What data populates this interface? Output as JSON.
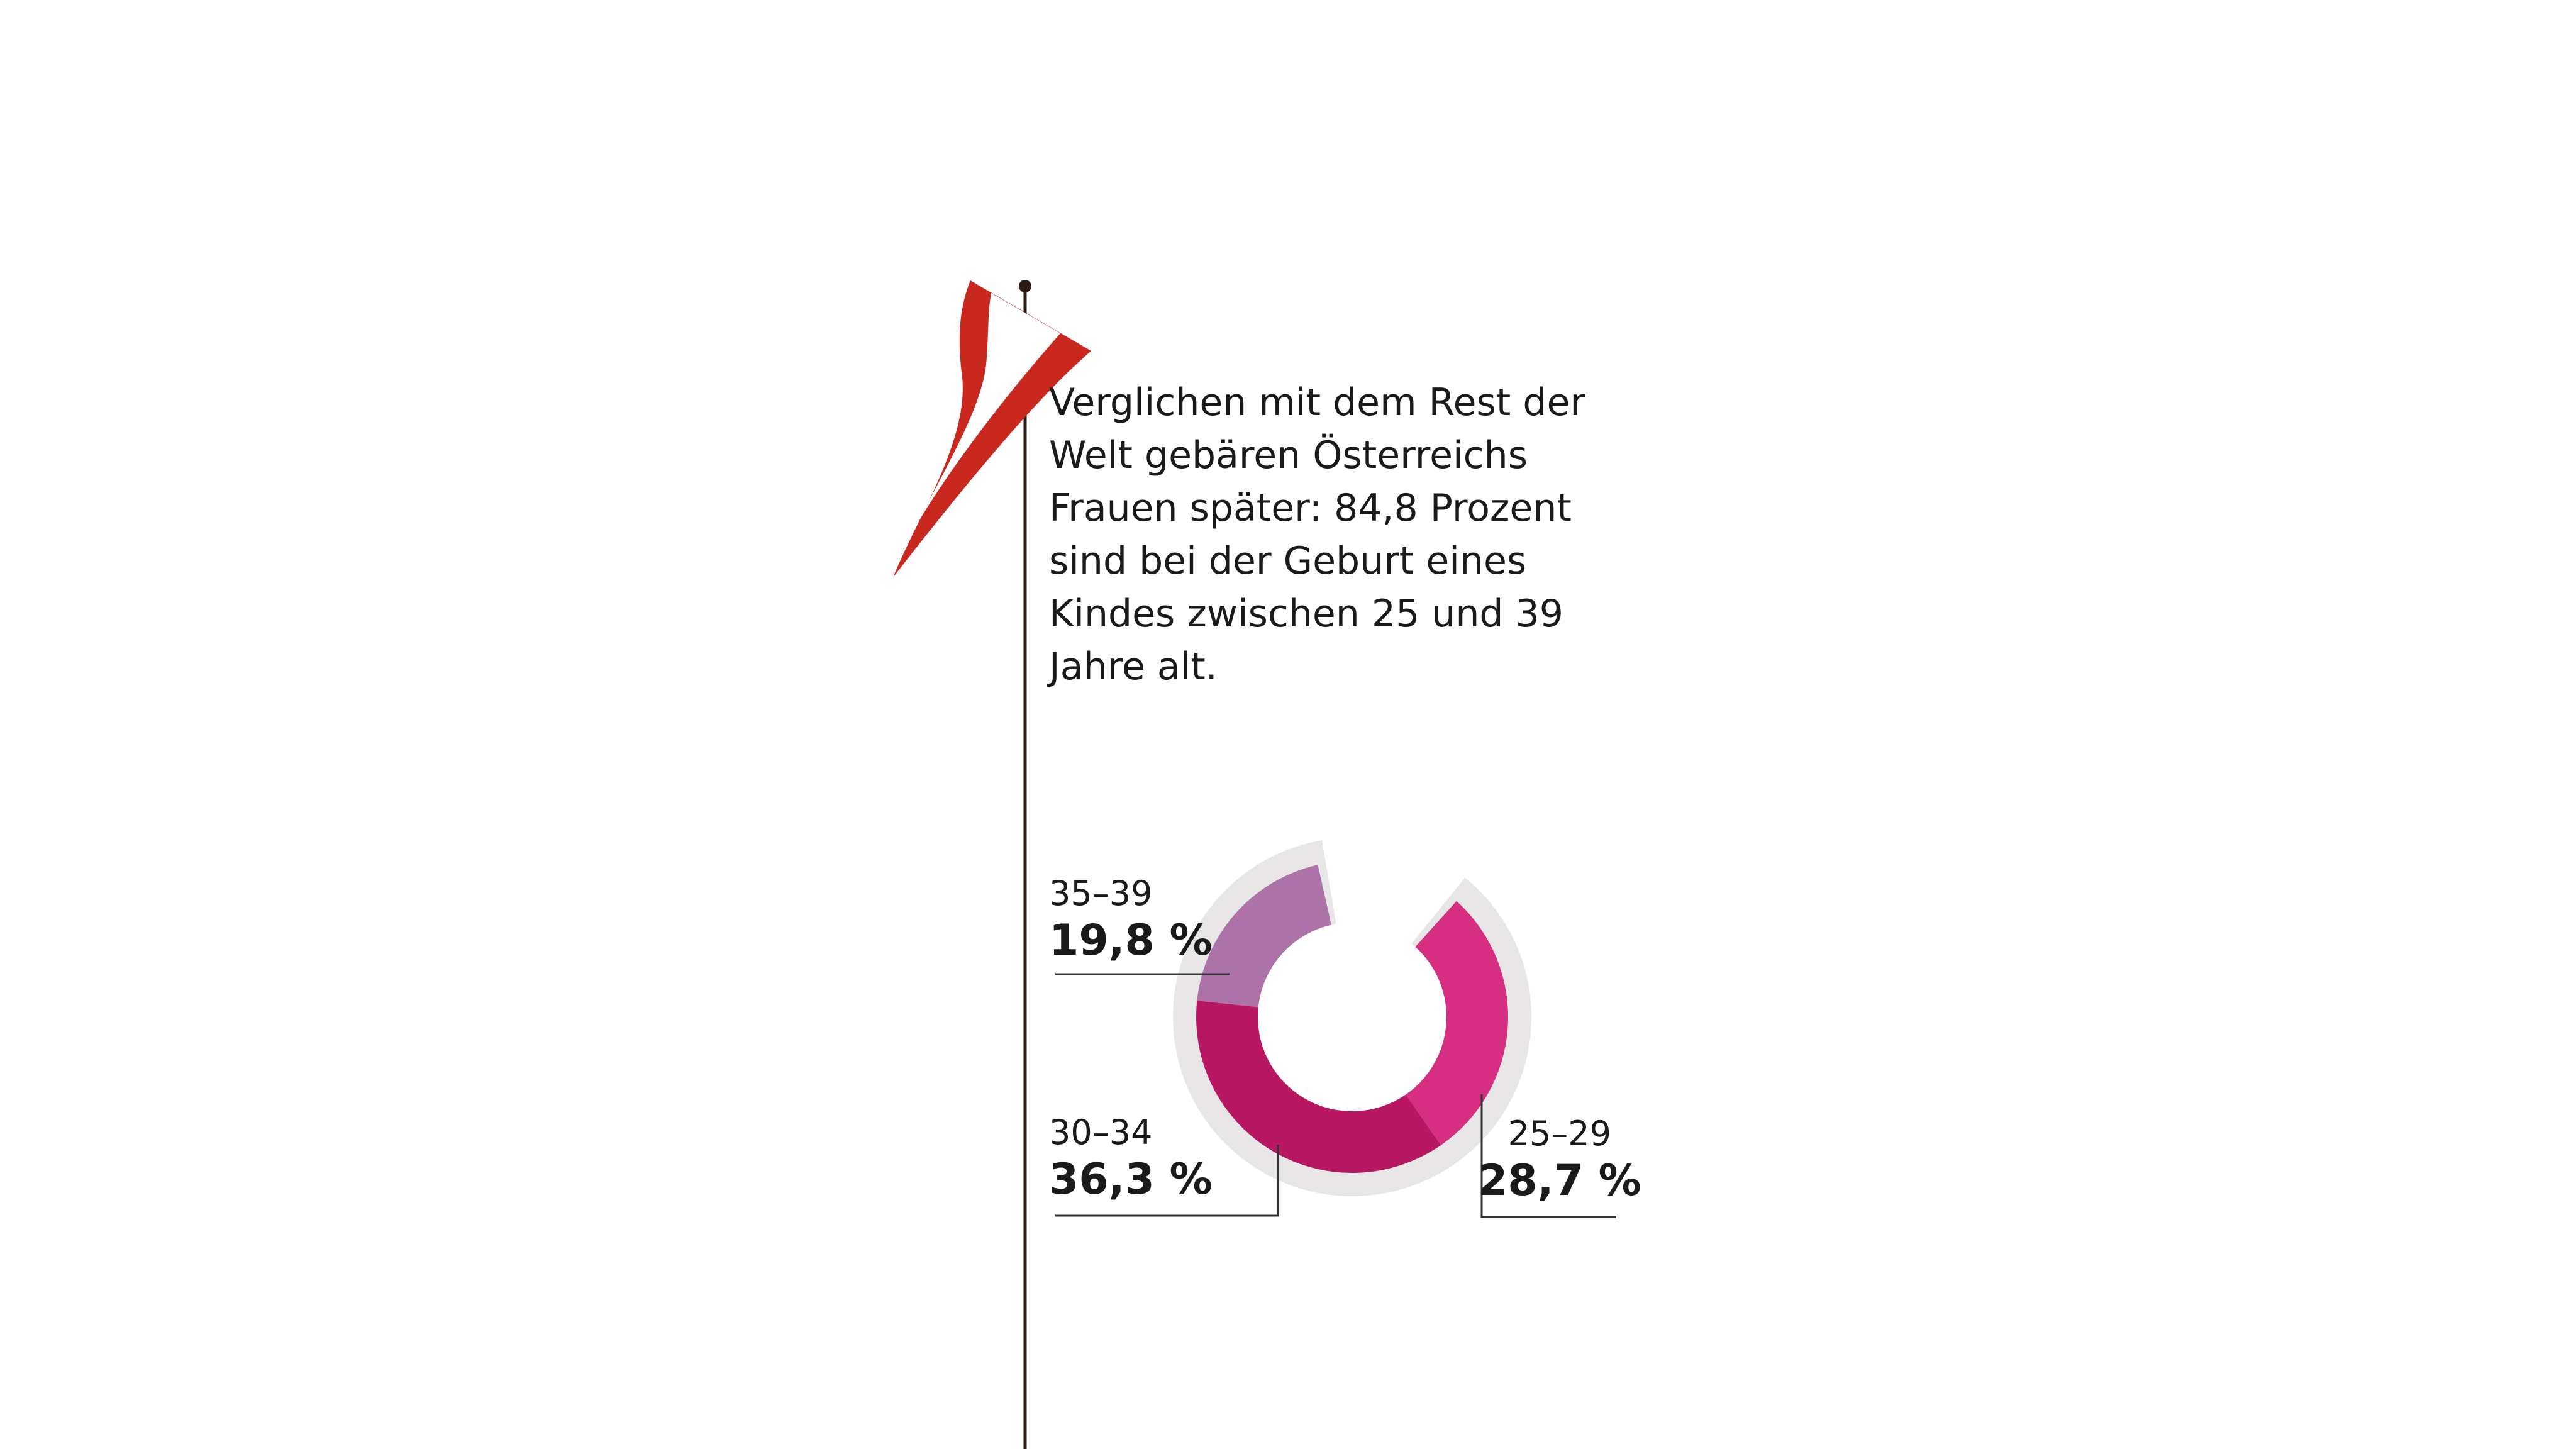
{
  "intro_text": "Verglichen mit dem Rest der Welt gebären Österreichs Frauen später: 84,8 Prozent sind bei der Geburt eines Kindes zwischen 25 und 39 Jahre alt.",
  "intro_lines": [
    "Verglichen mit dem Rest der",
    "Welt gebären Österreichs",
    "Frauen später: 84,8 Prozent",
    "sind bei der Geburt eines",
    "Kindes zwischen 25 und 39",
    "Jahre alt."
  ],
  "colors": {
    "flag_red": "#c8281e",
    "flag_white": "#ffffff",
    "pole": "#2a1a14",
    "track": "#e8e6e6",
    "leader": "#333333"
  },
  "icons": {
    "flag": "austria-flag-pennant-icon"
  },
  "chart_data": {
    "type": "donut",
    "segments": [
      {
        "range": "25–29",
        "value": 28.7,
        "label": "28,7 %",
        "color": "#d62e80"
      },
      {
        "range": "30–34",
        "value": 36.3,
        "label": "36,3 %",
        "color": "#b81862"
      },
      {
        "range": "35–39",
        "value": 19.8,
        "label": "19,8 %",
        "color": "#ad72a7"
      }
    ]
  }
}
